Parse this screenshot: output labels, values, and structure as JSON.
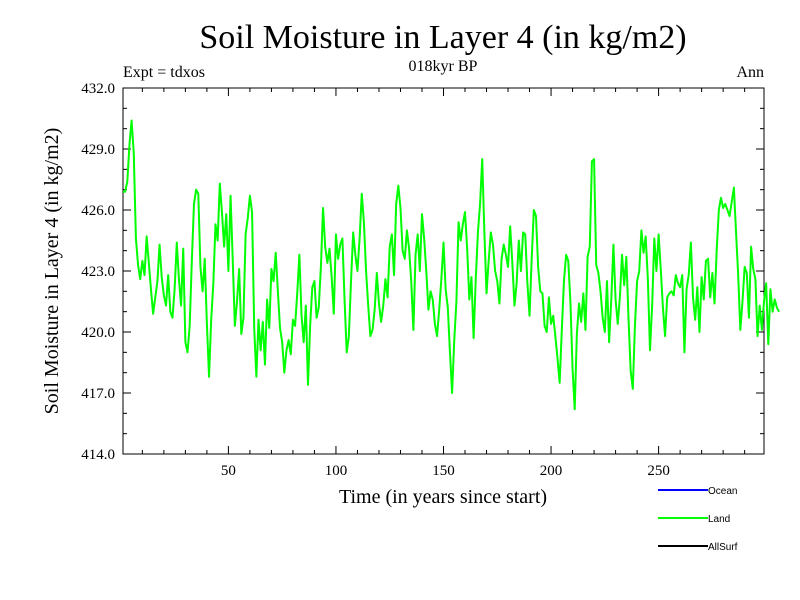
{
  "chart_data": {
    "type": "line",
    "title": "Soil Moisture in Layer 4 (in kg/m2)",
    "subtitle": "018kyr BP",
    "left_note": "Expt = tdxos",
    "right_note": "Ann",
    "xlabel": "Time (in years since start)",
    "ylabel": "Soil Moisture in Layer 4 (in kg/m2)",
    "xlim": [
      1,
      299
    ],
    "ylim": [
      414.0,
      432.0
    ],
    "x_ticks": [
      50,
      100,
      150,
      200,
      250
    ],
    "x_tick_labels": [
      "50",
      "100",
      "150",
      "200",
      "250"
    ],
    "y_ticks": [
      414.0,
      417.0,
      420.0,
      423.0,
      426.0,
      429.0,
      432.0
    ],
    "y_tick_labels": [
      "414.0",
      "417.0",
      "420.0",
      "423.0",
      "426.0",
      "429.0",
      "432.0"
    ],
    "legend": [
      {
        "name": "Ocean",
        "color": "#0000ff"
      },
      {
        "name": "Land",
        "color": "#00ff00"
      },
      {
        "name": "AllSurf",
        "color": "#000000"
      }
    ],
    "series": [
      {
        "name": "Land",
        "color": "#00ff00",
        "x_start": 1,
        "x_step": 1,
        "values": [
          426.9,
          426.9,
          427.4,
          429.2,
          430.4,
          428.8,
          424.6,
          423.3,
          422.6,
          423.5,
          422.8,
          424.7,
          423.4,
          422.1,
          420.9,
          421.7,
          422.5,
          424.3,
          422.7,
          421.8,
          421.3,
          422.8,
          421.0,
          420.7,
          422.1,
          424.4,
          422.6,
          421.3,
          424.1,
          419.5,
          419.0,
          420.3,
          423.5,
          426.3,
          427.0,
          426.8,
          423.2,
          422.0,
          423.6,
          420.4,
          417.8,
          420.6,
          422.4,
          425.3,
          424.5,
          427.3,
          425.9,
          424.2,
          425.8,
          423.0,
          426.7,
          423.6,
          420.3,
          421.5,
          423.1,
          419.9,
          420.7,
          424.8,
          425.6,
          426.7,
          425.9,
          420.2,
          417.8,
          420.6,
          419.1,
          420.5,
          418.4,
          421.6,
          420.2,
          423.1,
          422.5,
          423.9,
          422.0,
          420.2,
          419.5,
          418.0,
          419.1,
          419.6,
          418.9,
          420.6,
          420.3,
          421.9,
          423.8,
          420.8,
          419.5,
          421.3,
          417.4,
          420.3,
          422.2,
          422.5,
          420.7,
          421.2,
          423.2,
          426.1,
          424.2,
          423.4,
          424.1,
          422.7,
          420.9,
          424.8,
          423.6,
          424.3,
          424.6,
          421.6,
          419.0,
          419.8,
          422.5,
          424.9,
          423.8,
          423.0,
          424.6,
          426.8,
          425.4,
          423.0,
          421.3,
          419.8,
          420.1,
          421.1,
          422.9,
          421.4,
          420.5,
          421.3,
          422.6,
          421.7,
          424.2,
          424.8,
          422.8,
          426.3,
          427.2,
          426.1,
          424.0,
          423.6,
          425.0,
          424.1,
          422.5,
          420.1,
          423.8,
          424.8,
          423.0,
          425.8,
          424.6,
          423.0,
          421.1,
          422.0,
          421.6,
          420.4,
          419.8,
          421.1,
          422.6,
          424.4,
          422.1,
          421.2,
          419.0,
          417.0,
          419.6,
          421.5,
          425.4,
          424.5,
          425.3,
          425.9,
          424.1,
          421.6,
          422.7,
          419.7,
          422.6,
          424.9,
          426.3,
          428.5,
          424.9,
          421.9,
          423.5,
          424.9,
          424.3,
          423.0,
          422.5,
          421.4,
          423.6,
          424.3,
          423.8,
          423.2,
          425.2,
          423.4,
          421.3,
          422.4,
          424.5,
          423.0,
          424.9,
          424.8,
          422.4,
          420.8,
          423.6,
          426.0,
          425.7,
          423.2,
          422.0,
          421.9,
          420.3,
          420.0,
          421.7,
          420.4,
          420.8,
          419.8,
          418.7,
          417.5,
          420.1,
          422.5,
          423.8,
          423.5,
          421.5,
          418.2,
          416.2,
          419.9,
          421.4,
          420.5,
          421.9,
          420.1,
          423.7,
          424.2,
          428.4,
          428.5,
          423.3,
          422.9,
          422.0,
          420.7,
          420.0,
          422.5,
          419.5,
          421.6,
          424.3,
          421.6,
          420.4,
          421.7,
          423.8,
          422.3,
          423.7,
          420.7,
          418.1,
          417.2,
          420.3,
          422.5,
          423.0,
          425.0,
          423.9,
          424.7,
          422.6,
          419.1,
          421.3,
          424.6,
          423.0,
          424.8,
          423.1,
          421.2,
          419.8,
          421.7,
          421.9,
          422.0,
          421.8,
          422.8,
          422.4,
          422.2,
          422.8,
          419.0,
          422.1,
          422.8,
          424.4,
          421.7,
          420.6,
          422.2,
          420.0,
          422.7,
          421.6,
          423.5,
          423.6,
          421.7,
          422.9,
          421.4,
          424.0,
          426.0,
          426.6,
          426.1,
          426.3,
          426.0,
          425.7,
          426.4,
          427.1,
          424.9,
          422.8,
          420.1,
          421.5,
          423.2,
          422.9,
          420.7,
          424.2,
          423.1,
          422.6,
          419.8,
          421.3,
          420.1,
          421.5,
          422.4,
          419.4,
          422.1,
          421.0,
          421.6,
          421.2,
          421.0
        ]
      }
    ]
  }
}
